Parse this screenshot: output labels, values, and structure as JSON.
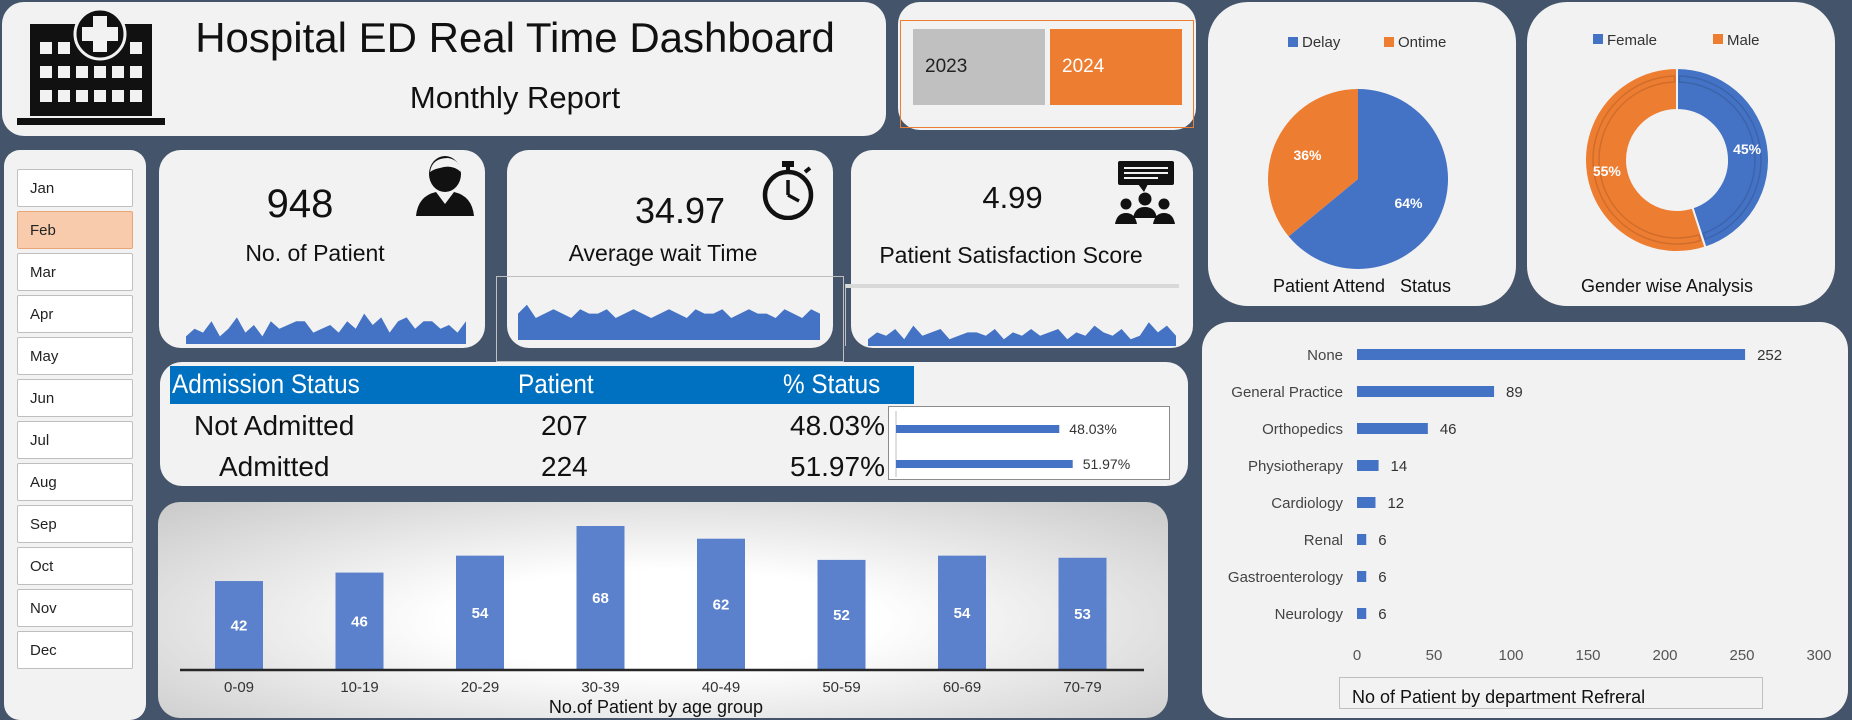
{
  "header": {
    "title": "Hospital ED Real Time Dashboard",
    "subtitle": "Monthly Report",
    "logo_icon": "hospital-icon"
  },
  "year_slicer": {
    "years": [
      "2023",
      "2024"
    ],
    "selected": "2024"
  },
  "month_slicer": {
    "months": [
      "Jan",
      "Feb",
      "Mar",
      "Apr",
      "May",
      "Jun",
      "Jul",
      "Aug",
      "Sep",
      "Oct",
      "Nov",
      "Dec"
    ],
    "selected": "Feb"
  },
  "kpis": {
    "patients": {
      "value": "948",
      "label": "No. of Patient",
      "icon": "patient-icon"
    },
    "wait_time": {
      "value": "34.97",
      "label": "Average wait Time",
      "icon": "stopwatch-icon"
    },
    "satisfaction": {
      "value": "4.99",
      "label": "Patient Satisfaction Score",
      "icon": "group-feedback-icon"
    }
  },
  "admission": {
    "headers": [
      "Admission Status",
      "Patient",
      "% Status"
    ],
    "rows": [
      {
        "status": "Not Admitted",
        "patients": "207",
        "pct": "48.03%",
        "pct_value": 48.03
      },
      {
        "status": "Admitted",
        "patients": "224",
        "pct": "51.97%",
        "pct_value": 51.97
      }
    ]
  },
  "colors": {
    "blue": "#4472c4",
    "orange": "#ed7d31",
    "header_blue": "#0070c0",
    "background": "#44546a",
    "card": "#f2f2f2"
  },
  "chart_data": [
    {
      "id": "patients_sparkline",
      "type": "area",
      "values": [
        2,
        4,
        3,
        6,
        2,
        4,
        7,
        3,
        5,
        2,
        6,
        4,
        5,
        6,
        6,
        3,
        4,
        5,
        3,
        6,
        4,
        8,
        5,
        7,
        3,
        6,
        7,
        4,
        6,
        6,
        4,
        5,
        3,
        6
      ],
      "ylim": [
        0,
        10
      ]
    },
    {
      "id": "wait_time_sparkline",
      "type": "area",
      "values": [
        6,
        8,
        5,
        6,
        7,
        6,
        5,
        7,
        6,
        6,
        7,
        5,
        6,
        7,
        6,
        5,
        6,
        7,
        6,
        5,
        7,
        6,
        6,
        7,
        5,
        6,
        7,
        6,
        6,
        5,
        7,
        6,
        5,
        7,
        6
      ],
      "ylim": [
        0,
        10
      ]
    },
    {
      "id": "satisfaction_sparkline",
      "type": "area",
      "values": [
        2,
        4,
        3,
        5,
        2,
        6,
        3,
        4,
        5,
        2,
        3,
        4,
        4,
        3,
        5,
        2,
        4,
        3,
        5,
        3,
        4,
        5,
        2,
        4,
        3,
        6,
        4,
        3,
        5,
        2,
        3,
        7,
        4,
        6,
        3
      ],
      "ylim": [
        0,
        10
      ]
    },
    {
      "id": "patient_attend_status",
      "type": "pie",
      "title": "Patient Attend   Status",
      "legend": [
        "Delay",
        "Ontime"
      ],
      "legend_position": "top",
      "values": [
        64,
        36
      ],
      "labels": [
        "64%",
        "36%"
      ]
    },
    {
      "id": "gender_analysis",
      "type": "pie",
      "style": "donut",
      "title": "Gender wise Analysis",
      "legend": [
        "Female",
        "Male"
      ],
      "legend_position": "top",
      "values": [
        45,
        55
      ],
      "labels": [
        "45%",
        "55%"
      ]
    },
    {
      "id": "age_group",
      "type": "bar",
      "title": "No.of Patient by age group",
      "categories": [
        "0-09",
        "10-19",
        "20-29",
        "30-39",
        "40-49",
        "50-59",
        "60-69",
        "70-79"
      ],
      "values": [
        42,
        46,
        54,
        68,
        62,
        52,
        54,
        53
      ],
      "ylim": [
        0,
        68
      ]
    },
    {
      "id": "department_referral",
      "type": "bar",
      "orientation": "horizontal",
      "title": "No of Patient by department Refreral",
      "categories": [
        "None",
        "General Practice",
        "Orthopedics",
        "Physiotherapy",
        "Cardiology",
        "Renal",
        "Gastroenterology",
        "Neurology"
      ],
      "values": [
        252,
        89,
        46,
        14,
        12,
        6,
        6,
        6
      ],
      "xlim": [
        0,
        300
      ],
      "xticks": [
        "0",
        "50",
        "100",
        "150",
        "200",
        "250",
        "300"
      ]
    }
  ]
}
